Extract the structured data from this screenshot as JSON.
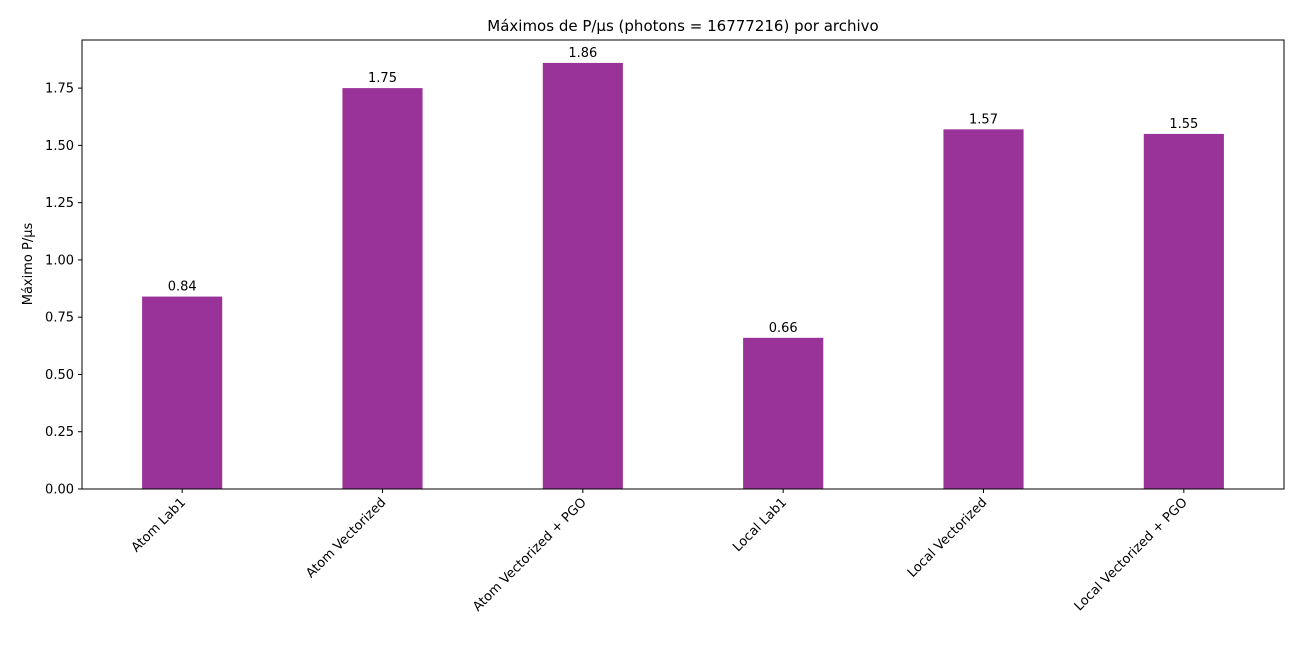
{
  "chart_data": {
    "type": "bar",
    "title": "Máximos de P/µs (photons = 16777216) por archivo",
    "xlabel": "",
    "ylabel": "Máximo P/µs",
    "categories": [
      "Atom Lab1",
      "Atom Vectorized",
      "Atom Vectorized + PGO",
      "Local Lab1",
      "Local Vectorized",
      "Local Vectorized + PGO"
    ],
    "values": [
      0.84,
      1.75,
      1.86,
      0.66,
      1.57,
      1.55
    ],
    "value_labels": [
      "0.84",
      "1.75",
      "1.86",
      "0.66",
      "1.57",
      "1.55"
    ],
    "ylim": [
      0,
      1.96
    ],
    "yticks": [
      0.0,
      0.25,
      0.5,
      0.75,
      1.0,
      1.25,
      1.5,
      1.75
    ],
    "ytick_labels": [
      "0.00",
      "0.25",
      "0.50",
      "0.75",
      "1.00",
      "1.25",
      "1.50",
      "1.75"
    ],
    "bar_color": "#993399",
    "grid": false,
    "legend": "none"
  }
}
